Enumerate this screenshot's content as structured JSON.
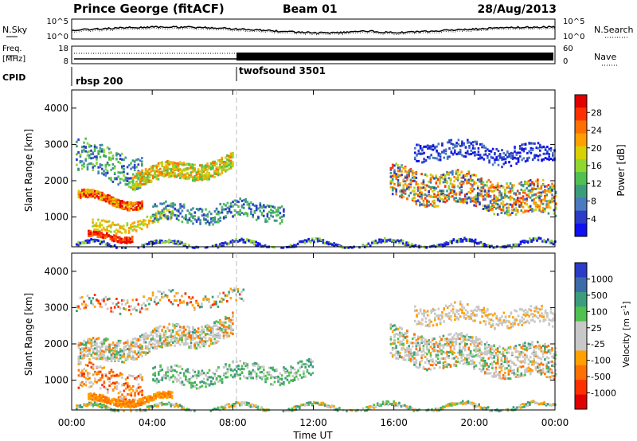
{
  "header": {
    "station": "Prince George (fitACF)",
    "beam": "Beam 01",
    "date": "28/Aug/2013"
  },
  "noise_panel": {
    "left_label": "N.Sky",
    "right_label": "N.Search",
    "left_ticks": [
      "10^5",
      "10^0"
    ],
    "right_ticks": [
      "10^5",
      "10^0"
    ]
  },
  "freq_panel": {
    "left_label_line1": "Freq.",
    "left_label_line2": "[MHz]",
    "left_ticks": [
      "18",
      "8"
    ],
    "right_label": "Nave",
    "right_ticks": [
      "60",
      "0"
    ]
  },
  "cpid_panel": {
    "label": "CPID",
    "modes": [
      {
        "name": "rbsp 200",
        "start_hour": 0
      },
      {
        "name": "twofsound 3501",
        "start_hour": 8.3
      }
    ]
  },
  "time_axis": {
    "label": "Time UT",
    "tick_labels": [
      "00:00",
      "04:00",
      "08:00",
      "12:00",
      "16:00",
      "20:00",
      "00:00"
    ],
    "tick_hours": [
      0,
      4,
      8,
      12,
      16,
      20,
      24
    ]
  },
  "chart_data": [
    {
      "type": "heatmap",
      "title": "",
      "xlabel": "",
      "ylabel": "Slant Range [km]",
      "xlim_hours": [
        0,
        24
      ],
      "ylim": [
        180,
        4500
      ],
      "y_ticks": [
        1000,
        2000,
        3000,
        4000
      ],
      "colorbar": {
        "label": "Power [dB]",
        "ticks": [
          "28",
          "24",
          "20",
          "16",
          "12",
          "8",
          "4"
        ],
        "colors": [
          "#e00000",
          "#ff3000",
          "#ff7000",
          "#ffa000",
          "#d8d000",
          "#90d830",
          "#50c050",
          "#3c9c7c",
          "#4a7ac0",
          "#2a3cc8",
          "#1010f0"
        ]
      },
      "scatter_regions": [
        {
          "name": "near-range echo band",
          "x": [
            0.3,
            3.5
          ],
          "y": [
            1600,
            1400
          ],
          "intensity": "high"
        },
        {
          "name": "morning echo band",
          "x": [
            3.0,
            8.0
          ],
          "y": [
            2100,
            2500
          ],
          "intensity": "medium"
        },
        {
          "name": "low near-range band",
          "x": [
            0.8,
            3.0
          ],
          "y": [
            450,
            520
          ],
          "intensity": "high"
        },
        {
          "name": "afternoon echo band",
          "x": [
            15.8,
            24
          ],
          "y": [
            2000,
            1450
          ],
          "intensity": "medium-high"
        }
      ]
    },
    {
      "type": "heatmap",
      "title": "",
      "xlabel": "Time UT",
      "ylabel": "Slant Range [km]",
      "xlim_hours": [
        0,
        24
      ],
      "ylim": [
        180,
        4500
      ],
      "y_ticks": [
        1000,
        2000,
        3000,
        4000
      ],
      "colorbar": {
        "label": "Velocity [m s^-1]",
        "ticks": [
          "1000",
          "500",
          "100",
          "25",
          "-25",
          "-100",
          "-500",
          "-1000"
        ],
        "colors": [
          "#2a3cc8",
          "#3c6ca8",
          "#3c9c7c",
          "#50c050",
          "#c8c8c8",
          "#c8c8c8",
          "#ffa000",
          "#ff7000",
          "#ff3000",
          "#e00000"
        ]
      },
      "scatter_regions": [
        {
          "name": "ground scatter band",
          "x": [
            0.3,
            8.0
          ],
          "y": [
            1600,
            2500
          ],
          "dominant": "25 to -25"
        },
        {
          "name": "near-range flow",
          "x": [
            0.5,
            3.0
          ],
          "y": [
            450,
            520
          ],
          "dominant": "-100 to -500"
        },
        {
          "name": "afternoon ground scatter",
          "x": [
            15.8,
            24
          ],
          "y": [
            2000,
            1450
          ],
          "dominant": "25 to -25"
        }
      ]
    }
  ]
}
